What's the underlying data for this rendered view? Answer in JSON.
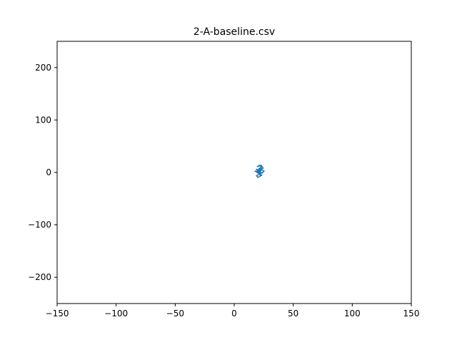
{
  "chart_data": {
    "type": "line",
    "title": "2-A-baseline.csv",
    "xlabel": "",
    "ylabel": "",
    "xlim": [
      -150,
      150
    ],
    "ylim": [
      -250,
      250
    ],
    "xticks": [
      -150,
      -100,
      -50,
      0,
      50,
      100,
      150
    ],
    "yticks": [
      -200,
      -100,
      0,
      100,
      200
    ],
    "xtick_labels": [
      "−150",
      "−100",
      "−50",
      "0",
      "50",
      "100",
      "150"
    ],
    "ytick_labels": [
      "−200",
      "−100",
      "0",
      "100",
      "200"
    ],
    "grid": false,
    "legend": "none",
    "series": [
      {
        "color": "#1f77b4",
        "x": [
          21.0,
          22.5,
          20.8,
          23.1,
          21.6,
          19.5,
          22.9,
          24.6,
          21.2,
          18.7,
          20.4,
          23.8,
          25.4,
          22.1,
          19.8,
          17.6,
          20.9,
          22.7,
          21.3,
          23.5,
          20.1,
          18.9,
          21.8,
          24.2,
          22.4,
          19.9,
          21.5,
          23.0,
          20.6,
          22.2,
          21.0
        ],
        "y": [
          0.0,
          3.5,
          7.0,
          10.5,
          14.0,
          11.0,
          13.5,
          8.0,
          4.5,
          6.0,
          2.0,
          -1.0,
          3.0,
          5.5,
          1.5,
          2.5,
          -2.0,
          -4.5,
          -8.0,
          -5.0,
          -9.5,
          -6.0,
          -3.0,
          0.5,
          -1.5,
          1.0,
          4.0,
          8.5,
          5.0,
          2.0,
          0.0
        ]
      }
    ]
  }
}
